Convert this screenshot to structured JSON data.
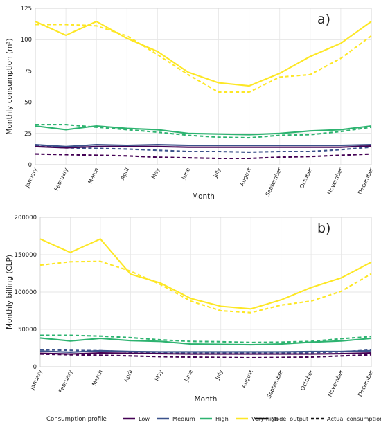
{
  "chart_data": [
    {
      "type": "line",
      "panel_label": "a)",
      "xlabel": "Month",
      "ylabel": "Monthly consumption (m³)",
      "ylim": [
        0,
        125
      ],
      "yticks": [
        0,
        25,
        50,
        75,
        100,
        125
      ],
      "ytick_labels": [
        "0",
        "25",
        "50",
        "75",
        "100",
        "125"
      ],
      "grid": true,
      "categories": [
        "January",
        "February",
        "March",
        "April",
        "May",
        "June",
        "July",
        "August",
        "September",
        "October",
        "November",
        "December"
      ],
      "series": [
        {
          "profile": "Low",
          "kind": "Model output",
          "values": [
            14.5,
            13.5,
            14.5,
            14.5,
            14.5,
            14,
            14,
            14,
            14,
            14,
            14,
            15
          ]
        },
        {
          "profile": "Low",
          "kind": "Actual consumptions",
          "values": [
            8.5,
            8,
            7.5,
            7,
            6,
            5.5,
            5,
            5,
            6,
            6.5,
            7.5,
            8.5
          ]
        },
        {
          "profile": "Medium",
          "kind": "Model output",
          "values": [
            16,
            14.5,
            16,
            15.5,
            16,
            15.5,
            15.5,
            15.5,
            15.5,
            15.5,
            15.5,
            16
          ]
        },
        {
          "profile": "Medium",
          "kind": "Actual consumptions",
          "values": [
            15,
            13.5,
            13,
            12.5,
            11.5,
            10.5,
            10.5,
            10,
            10.5,
            10.5,
            12,
            14
          ]
        },
        {
          "profile": "High",
          "kind": "Model output",
          "values": [
            31,
            28,
            31,
            29,
            28,
            25,
            24.5,
            24,
            25,
            27,
            28,
            31
          ]
        },
        {
          "profile": "High",
          "kind": "Actual consumptions",
          "values": [
            32,
            32,
            30,
            28,
            26,
            23.5,
            22,
            21.5,
            23.5,
            24,
            26.5,
            30
          ]
        },
        {
          "profile": "Very high",
          "kind": "Model output",
          "values": [
            114.5,
            103.5,
            114.5,
            101,
            90.5,
            74,
            65.5,
            63,
            73,
            86.5,
            97,
            114.5
          ]
        },
        {
          "profile": "Very high",
          "kind": "Actual consumptions",
          "values": [
            112,
            112,
            111,
            103,
            88,
            72,
            58,
            58,
            70,
            72,
            85,
            103
          ]
        }
      ]
    },
    {
      "type": "line",
      "panel_label": "b)",
      "xlabel": "Month",
      "ylabel": "Monthly billing (CLP)",
      "ylim": [
        0,
        200000
      ],
      "yticks": [
        0,
        50000,
        100000,
        150000,
        200000
      ],
      "ytick_labels": [
        "0",
        "50000",
        "100000",
        "150000",
        "200000"
      ],
      "grid": true,
      "categories": [
        "January",
        "February",
        "March",
        "April",
        "May",
        "June",
        "July",
        "August",
        "September",
        "October",
        "November",
        "December"
      ],
      "series": [
        {
          "profile": "Low",
          "kind": "Model output",
          "values": [
            18000,
            17000,
            18500,
            18000,
            17500,
            17000,
            17000,
            17000,
            17000,
            17000,
            17500,
            18500
          ]
        },
        {
          "profile": "Low",
          "kind": "Actual consumptions",
          "values": [
            17000,
            16000,
            15500,
            14500,
            13500,
            13000,
            12500,
            12000,
            12500,
            13000,
            14500,
            16000
          ]
        },
        {
          "profile": "Medium",
          "kind": "Model output",
          "values": [
            21000,
            19500,
            21500,
            20500,
            20000,
            20000,
            20000,
            20000,
            20000,
            20500,
            20500,
            21500
          ]
        },
        {
          "profile": "Medium",
          "kind": "Actual consumptions",
          "values": [
            23000,
            22000,
            21500,
            20000,
            19000,
            18500,
            18500,
            18000,
            18500,
            19000,
            20000,
            22500
          ]
        },
        {
          "profile": "High",
          "kind": "Model output",
          "values": [
            38500,
            34500,
            38000,
            35000,
            34000,
            30500,
            30000,
            29500,
            30500,
            33000,
            34500,
            38000
          ]
        },
        {
          "profile": "High",
          "kind": "Actual consumptions",
          "values": [
            42000,
            42000,
            41000,
            39000,
            36000,
            34000,
            33500,
            32500,
            33000,
            34000,
            37500,
            40500
          ]
        },
        {
          "profile": "Very high",
          "kind": "Model output",
          "values": [
            171000,
            153000,
            171000,
            124000,
            112000,
            91500,
            81000,
            77500,
            89500,
            106000,
            119000,
            140000
          ]
        },
        {
          "profile": "Very high",
          "kind": "Actual consumptions",
          "values": [
            136000,
            140500,
            141000,
            128000,
            110000,
            88000,
            75000,
            72500,
            82500,
            88000,
            101000,
            124500
          ]
        }
      ]
    }
  ],
  "legend": {
    "position": "bottom",
    "profile_title": "Consumption profile",
    "profiles": [
      {
        "label": "Low",
        "color": "#440154"
      },
      {
        "label": "Medium",
        "color": "#3b528b"
      },
      {
        "label": "High",
        "color": "#2db370"
      },
      {
        "label": "Very high",
        "color": "#fde725"
      }
    ],
    "linetypes": [
      {
        "label": "Model output",
        "dash": "solid"
      },
      {
        "label": "Actual consumptions",
        "dash": "dashed"
      }
    ]
  }
}
